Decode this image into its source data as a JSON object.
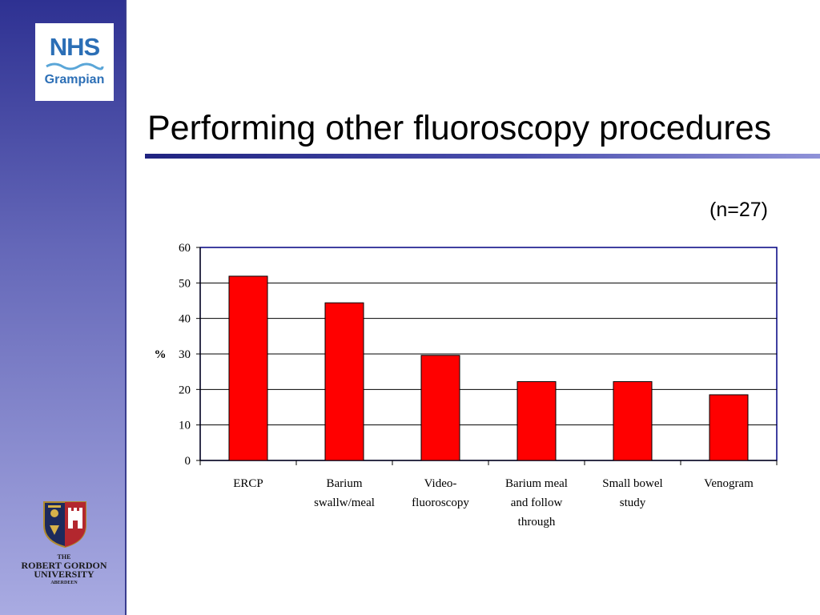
{
  "slide": {
    "title": "Performing other fluoroscopy procedures",
    "note": "(n=27)"
  },
  "logos": {
    "nhs": {
      "mark": "NHS",
      "region": "Grampian"
    },
    "university": {
      "line1": "THE",
      "line2": "ROBERT GORDON",
      "line3": "UNIVERSITY",
      "line4": "ABERDEEN"
    }
  },
  "colors": {
    "bar": "#ff0000",
    "plot_border": "#000080",
    "sidebar": "#4b4fae",
    "nhs_blue": "#2c6fb6"
  },
  "chart_data": {
    "type": "bar",
    "ylabel": "%",
    "ylim": [
      0,
      60
    ],
    "yticks": [
      "0",
      "10",
      "20",
      "30",
      "40",
      "50",
      "60"
    ],
    "grid": true,
    "categories": [
      [
        "ERCP"
      ],
      [
        "Barium",
        "swallw/meal"
      ],
      [
        "Video-",
        "fluoroscopy"
      ],
      [
        "Barium meal",
        "and follow",
        "through"
      ],
      [
        "Small bowel",
        "study"
      ],
      [
        "Venogram"
      ]
    ],
    "values": [
      51.9,
      44.4,
      29.6,
      22.2,
      22.2,
      18.5
    ]
  }
}
